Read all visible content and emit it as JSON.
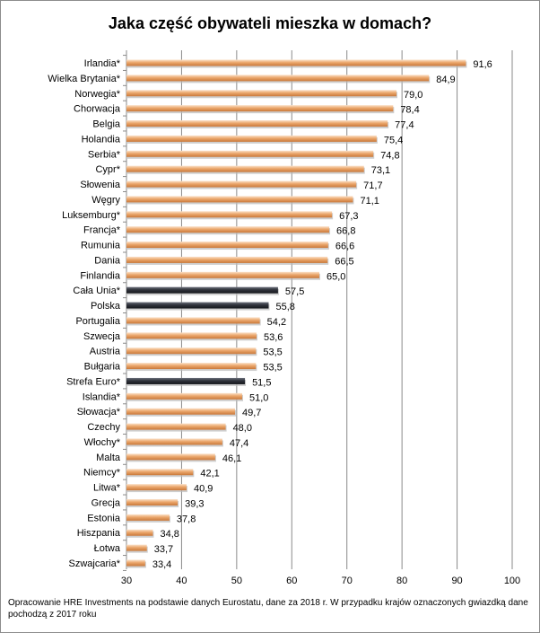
{
  "chart_data": {
    "type": "bar",
    "orientation": "horizontal",
    "title": "Jaka część obywateli mieszka w domach?",
    "xlim": [
      30,
      100
    ],
    "xticks": [
      30,
      40,
      50,
      60,
      70,
      80,
      90,
      100
    ],
    "grid": true,
    "categories": [
      "Irlandia*",
      "Wielka Brytania*",
      "Norwegia*",
      "Chorwacja",
      "Belgia",
      "Holandia",
      "Serbia*",
      "Cypr*",
      "Słowenia",
      "Węgry",
      "Luksemburg*",
      "Francja*",
      "Rumunia",
      "Dania",
      "Finlandia",
      "Cała Unia*",
      "Polska",
      "Portugalia",
      "Szwecja",
      "Austria",
      "Bułgaria",
      "Strefa Euro*",
      "Islandia*",
      "Słowacja*",
      "Czechy",
      "Włochy*",
      "Malta",
      "Niemcy*",
      "Litwa*",
      "Grecja",
      "Estonia",
      "Hiszpania",
      "Łotwa",
      "Szwajcaria*"
    ],
    "values": [
      91.6,
      84.9,
      79.0,
      78.4,
      77.4,
      75.4,
      74.8,
      73.1,
      71.7,
      71.1,
      67.3,
      66.8,
      66.6,
      66.5,
      65.0,
      57.5,
      55.8,
      54.2,
      53.6,
      53.5,
      53.5,
      51.5,
      51.0,
      49.7,
      48.0,
      47.4,
      46.1,
      42.1,
      40.9,
      39.3,
      37.8,
      34.8,
      33.7,
      33.4
    ],
    "value_labels": [
      "91,6",
      "84,9",
      "79,0",
      "78,4",
      "77,4",
      "75,4",
      "74,8",
      "73,1",
      "71,7",
      "71,1",
      "67,3",
      "66,8",
      "66,6",
      "66,5",
      "65,0",
      "57,5",
      "55,8",
      "54,2",
      "53,6",
      "53,5",
      "53,5",
      "51,5",
      "51,0",
      "49,7",
      "48,0",
      "47,4",
      "46,1",
      "42,1",
      "40,9",
      "39,3",
      "37,8",
      "34,8",
      "33,7",
      "33,4"
    ],
    "highlighted": [
      "Cała Unia*",
      "Polska",
      "Strefa Euro*"
    ],
    "colors": {
      "bar": "#e8a46c",
      "bar_highlight": "#2f323a",
      "grid": "#8a8a8a"
    }
  },
  "footnote": "Opracowanie HRE Investments na podstawie danych Eurostatu, dane za 2018 r. W przypadku krajów  oznaczonych gwiazdką dane pochodzą z 2017 roku"
}
